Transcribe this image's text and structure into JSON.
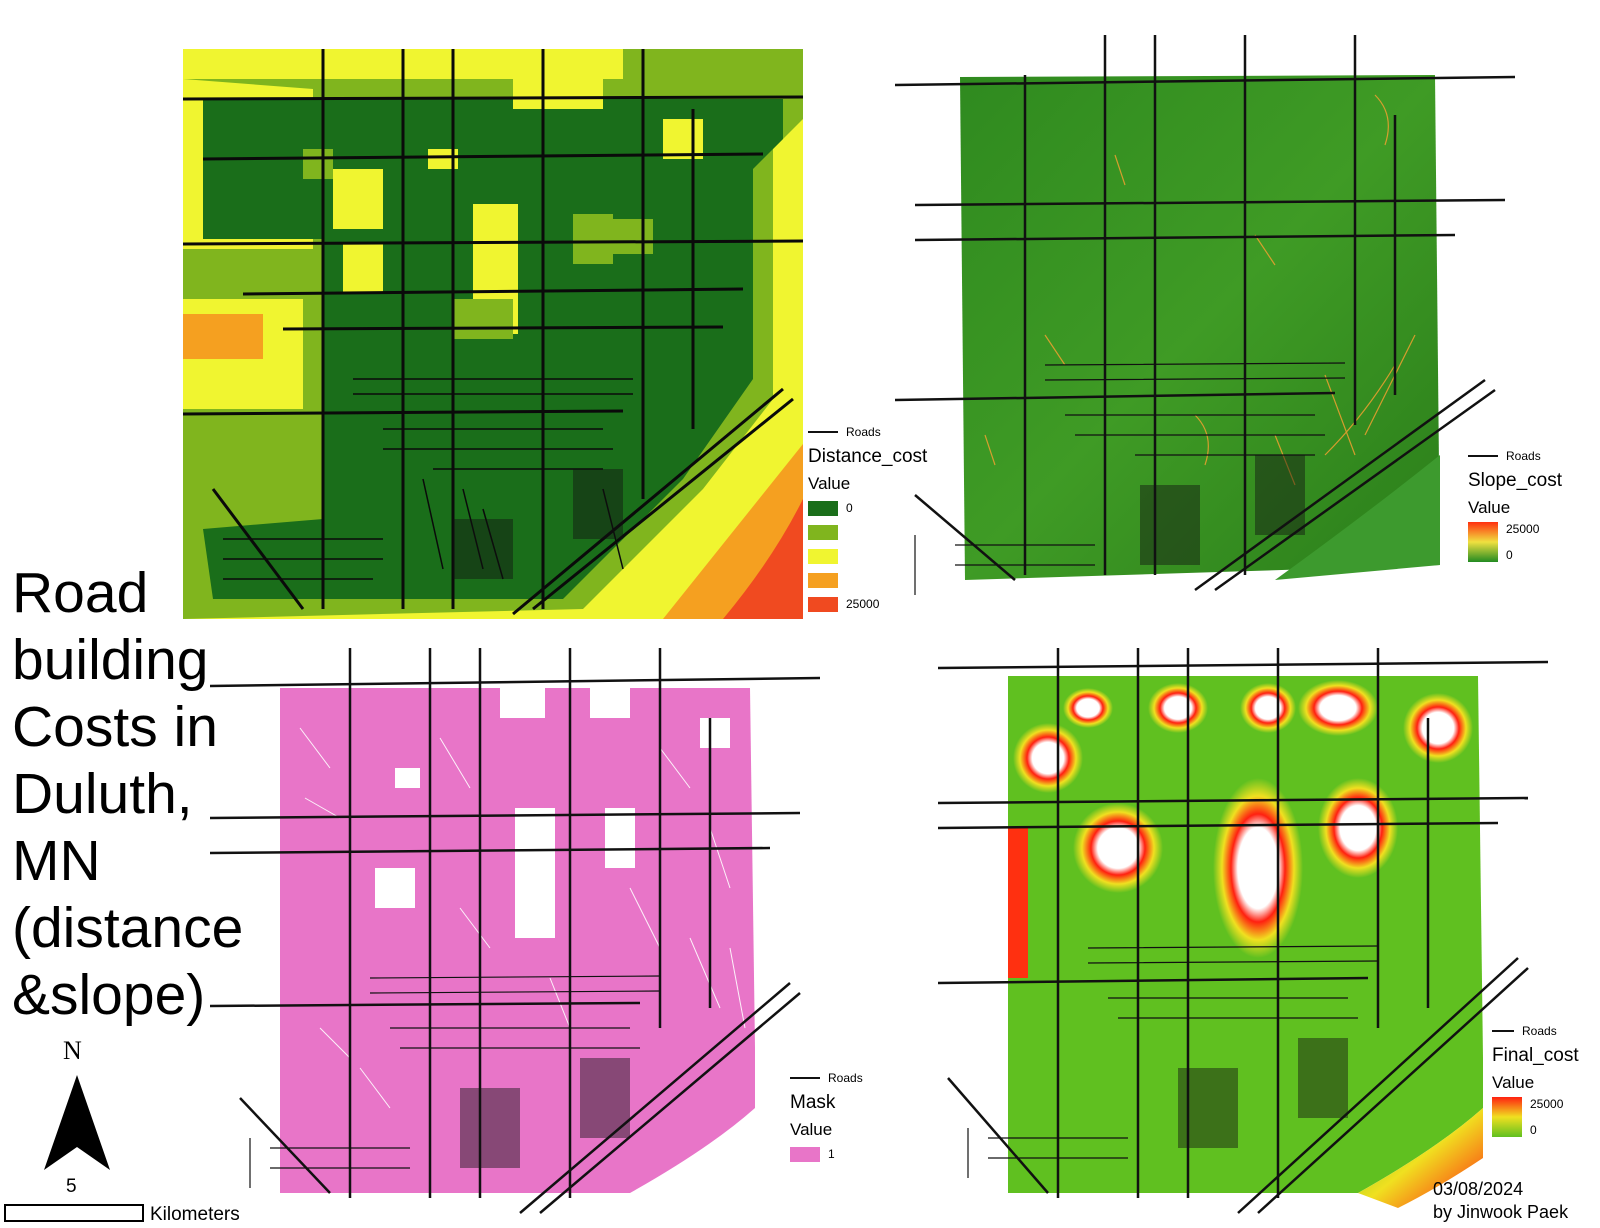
{
  "title_lines": [
    "Road",
    "building",
    "Costs in",
    "Duluth,",
    "MN",
    "(distance",
    "&slope)"
  ],
  "panels": [
    {
      "id": "distance",
      "legend": {
        "roads_label": "Roads",
        "title": "Distance_cost",
        "subtitle": "Value",
        "classes": [
          {
            "color": "#1a6e1a",
            "label": "0"
          },
          {
            "color": "#80b51e",
            "label": ""
          },
          {
            "color": "#f0f530",
            "label": ""
          },
          {
            "color": "#f5a020",
            "label": ""
          },
          {
            "color": "#f04a20",
            "label": "25000"
          }
        ]
      }
    },
    {
      "id": "slope",
      "legend": {
        "roads_label": "Roads",
        "title": "Slope_cost",
        "subtitle": "Value",
        "ramp_top": "25000",
        "ramp_bottom": "0",
        "ramp_colors": [
          "#ff3010",
          "#f0e040",
          "#228b22"
        ]
      }
    },
    {
      "id": "mask",
      "legend": {
        "roads_label": "Roads",
        "title": "Mask",
        "subtitle": "Value",
        "classes": [
          {
            "color": "#e875c8",
            "label": "1"
          }
        ]
      }
    },
    {
      "id": "final",
      "legend": {
        "roads_label": "Roads",
        "title": "Final_cost",
        "subtitle": "Value",
        "ramp_top": "25000",
        "ramp_bottom": "0",
        "ramp_colors": [
          "#ff2010",
          "#f0e020",
          "#60c020"
        ]
      }
    }
  ],
  "north": {
    "label": "N"
  },
  "scale": {
    "value": "5",
    "unit": "Kilometers"
  },
  "footer": {
    "date": "03/08/2024",
    "author": "by Jinwook Paek"
  }
}
